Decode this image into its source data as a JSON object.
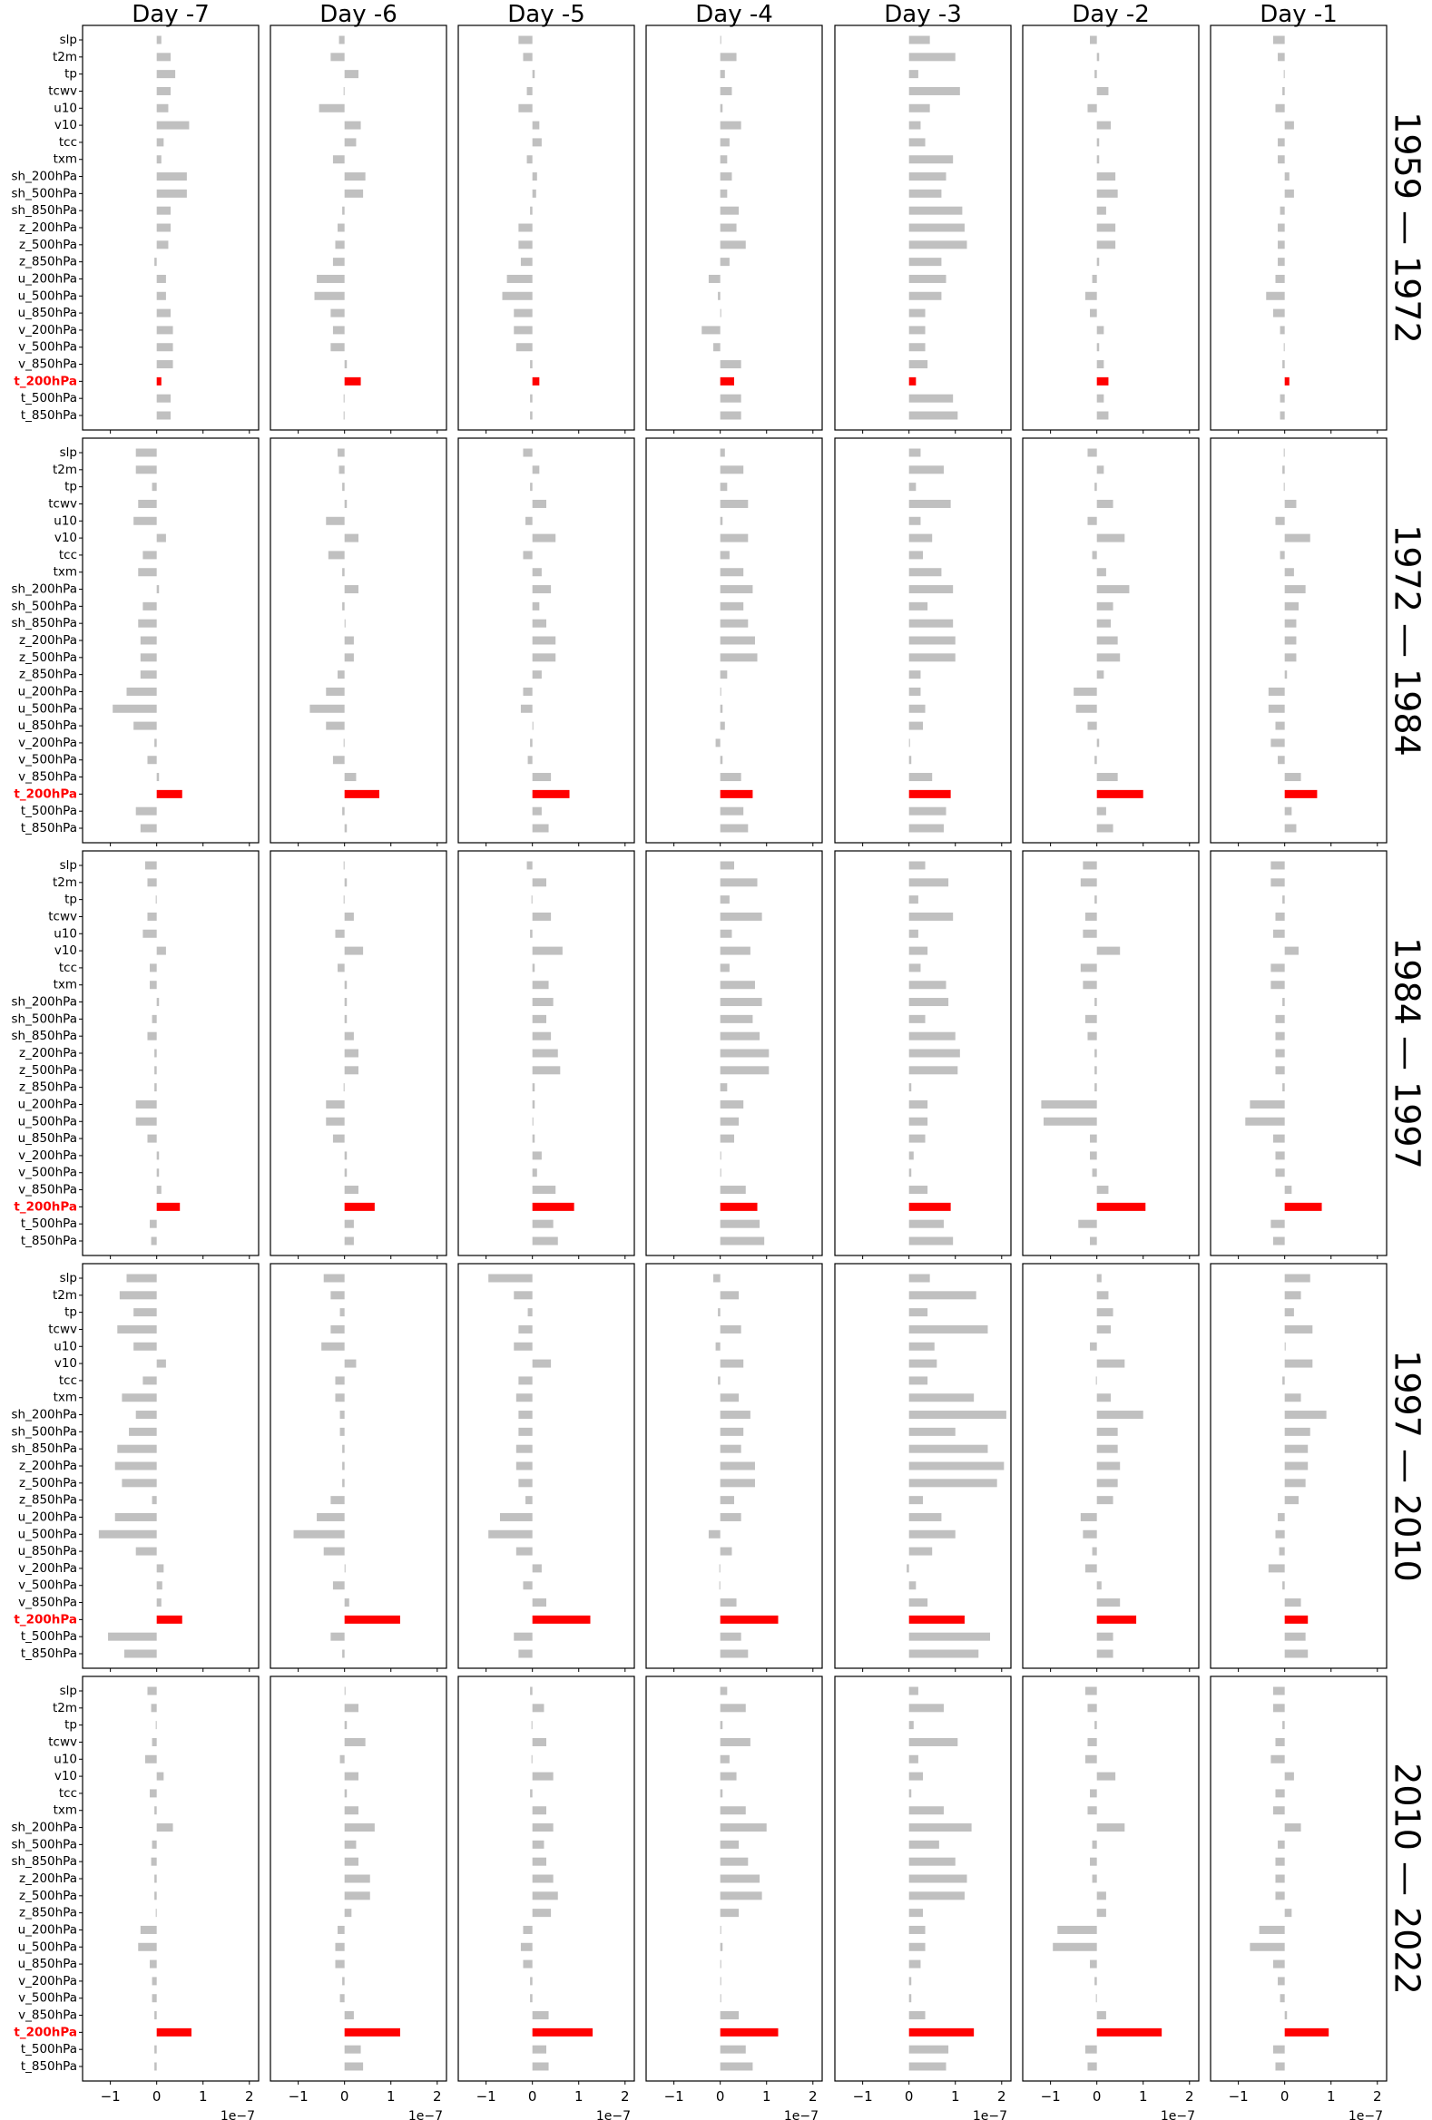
{
  "chart_data": {
    "type": "bar",
    "orientation": "horizontal",
    "columns": [
      "Day -7",
      "Day -6",
      "Day -5",
      "Day -4",
      "Day -3",
      "Day -2",
      "Day -1"
    ],
    "rows": [
      "1959 — 1972",
      "1972 — 1984",
      "1984 — 1997",
      "1997 — 2010",
      "2010 — 2022"
    ],
    "variables": [
      "slp",
      "t2m",
      "tp",
      "tcwv",
      "u10",
      "v10",
      "tcc",
      "txm",
      "sh_200hPa",
      "sh_500hPa",
      "sh_850hPa",
      "z_200hPa",
      "z_500hPa",
      "z_850hPa",
      "u_200hPa",
      "u_500hPa",
      "u_850hPa",
      "v_200hPa",
      "v_500hPa",
      "v_850hPa",
      "t_200hPa",
      "t_500hPa",
      "t_850hPa"
    ],
    "highlight_variable": "t_200hPa",
    "colors": {
      "bars": "#c0c0c0",
      "highlight": "#ff0000"
    },
    "xlim": [
      -1.6,
      2.2
    ],
    "xticks": [
      -1,
      0,
      1,
      2
    ],
    "xtick_labels": [
      "−1",
      "0",
      "1",
      "2"
    ],
    "x_scale_label": "1e−7",
    "grid": false,
    "values": [
      [
        [
          0.1,
          0.3,
          0.4,
          0.3,
          0.25,
          0.7,
          0.15,
          0.1,
          0.65,
          0.65,
          0.3,
          0.3,
          0.25,
          -0.05,
          0.2,
          0.2,
          0.3,
          0.35,
          0.35,
          0.35,
          0.1,
          0.3,
          0.3
        ],
        [
          -0.12,
          -0.3,
          0.3,
          -0.02,
          -0.55,
          0.35,
          0.25,
          -0.25,
          0.45,
          0.4,
          -0.05,
          -0.15,
          -0.2,
          -0.25,
          -0.6,
          -0.65,
          -0.3,
          -0.25,
          -0.3,
          0.05,
          0.35,
          -0.02,
          -0.02
        ],
        [
          -0.3,
          -0.2,
          0.05,
          -0.12,
          -0.3,
          0.15,
          0.2,
          -0.12,
          0.1,
          0.08,
          -0.05,
          -0.3,
          -0.3,
          -0.25,
          -0.55,
          -0.65,
          -0.4,
          -0.4,
          -0.35,
          -0.05,
          0.15,
          -0.05,
          -0.05
        ],
        [
          0.02,
          0.35,
          0.1,
          0.25,
          0.05,
          0.45,
          0.2,
          0.15,
          0.25,
          0.15,
          0.4,
          0.35,
          0.55,
          0.2,
          -0.25,
          -0.05,
          0.02,
          -0.4,
          -0.15,
          0.45,
          0.3,
          0.45,
          0.45
        ],
        [
          0.45,
          1.0,
          0.2,
          1.1,
          0.45,
          0.25,
          0.35,
          0.95,
          0.8,
          0.7,
          1.15,
          1.2,
          1.25,
          0.7,
          0.8,
          0.7,
          0.35,
          0.35,
          0.35,
          0.4,
          0.15,
          0.95,
          1.05
        ],
        [
          -0.15,
          0.05,
          -0.05,
          0.25,
          -0.2,
          0.3,
          0.05,
          0.05,
          0.4,
          0.45,
          0.2,
          0.4,
          0.4,
          0.05,
          -0.1,
          -0.25,
          -0.15,
          0.15,
          0.05,
          0.15,
          0.25,
          0.15,
          0.25
        ],
        [
          -0.25,
          -0.15,
          -0.02,
          -0.05,
          -0.2,
          0.2,
          -0.15,
          -0.15,
          0.1,
          0.2,
          -0.1,
          -0.15,
          -0.15,
          -0.15,
          -0.2,
          -0.4,
          -0.25,
          -0.1,
          -0.02,
          -0.05,
          0.1,
          -0.1,
          -0.1
        ]
      ],
      [
        [
          -0.45,
          -0.45,
          -0.1,
          -0.4,
          -0.5,
          0.2,
          -0.3,
          -0.4,
          0.05,
          -0.3,
          -0.4,
          -0.35,
          -0.35,
          -0.35,
          -0.65,
          -0.95,
          -0.5,
          -0.05,
          -0.2,
          0.05,
          0.55,
          -0.45,
          -0.35
        ],
        [
          -0.15,
          -0.12,
          -0.05,
          0.05,
          -0.4,
          0.3,
          -0.35,
          -0.05,
          0.3,
          -0.05,
          0.02,
          0.2,
          0.2,
          -0.15,
          -0.4,
          -0.75,
          -0.4,
          -0.02,
          -0.25,
          0.25,
          0.75,
          -0.05,
          0.05
        ],
        [
          -0.2,
          0.15,
          -0.05,
          0.3,
          -0.15,
          0.5,
          -0.2,
          0.2,
          0.4,
          0.15,
          0.3,
          0.5,
          0.5,
          0.2,
          -0.2,
          -0.25,
          0.02,
          -0.05,
          -0.1,
          0.4,
          0.8,
          0.2,
          0.35
        ],
        [
          0.1,
          0.5,
          0.15,
          0.6,
          0.05,
          0.6,
          0.2,
          0.5,
          0.7,
          0.5,
          0.6,
          0.75,
          0.8,
          0.15,
          0.02,
          0.05,
          0.1,
          -0.1,
          0.05,
          0.45,
          0.7,
          0.5,
          0.6
        ],
        [
          0.25,
          0.75,
          0.15,
          0.9,
          0.25,
          0.5,
          0.3,
          0.7,
          0.95,
          0.4,
          0.95,
          1.0,
          1.0,
          0.25,
          0.25,
          0.35,
          0.3,
          0.02,
          0.05,
          0.5,
          0.9,
          0.8,
          0.75
        ],
        [
          -0.2,
          0.15,
          -0.05,
          0.35,
          -0.2,
          0.6,
          -0.1,
          0.2,
          0.7,
          0.35,
          0.3,
          0.45,
          0.5,
          0.15,
          -0.5,
          -0.45,
          -0.2,
          0.05,
          -0.05,
          0.45,
          1.0,
          0.2,
          0.35
        ],
        [
          -0.02,
          -0.05,
          -0.02,
          0.25,
          -0.2,
          0.55,
          -0.1,
          0.2,
          0.45,
          0.3,
          0.25,
          0.25,
          0.25,
          0.05,
          -0.35,
          -0.35,
          -0.2,
          -0.3,
          -0.15,
          0.35,
          0.7,
          0.15,
          0.25
        ]
      ],
      [
        [
          -0.25,
          -0.2,
          -0.02,
          -0.2,
          -0.3,
          0.2,
          -0.15,
          -0.15,
          0.05,
          -0.1,
          -0.2,
          -0.05,
          -0.05,
          -0.05,
          -0.45,
          -0.45,
          -0.2,
          0.05,
          0.05,
          0.1,
          0.5,
          -0.15,
          -0.12
        ],
        [
          -0.02,
          0.05,
          -0.02,
          0.2,
          -0.2,
          0.4,
          -0.15,
          0.05,
          0.05,
          0.05,
          0.2,
          0.3,
          0.3,
          -0.02,
          -0.4,
          -0.4,
          -0.25,
          0.05,
          0.05,
          0.3,
          0.65,
          0.2,
          0.2
        ],
        [
          -0.12,
          0.3,
          -0.02,
          0.4,
          -0.05,
          0.65,
          0.05,
          0.35,
          0.45,
          0.3,
          0.4,
          0.55,
          0.6,
          0.05,
          0.05,
          0.02,
          0.05,
          0.2,
          0.1,
          0.5,
          0.9,
          0.45,
          0.55
        ],
        [
          0.3,
          0.8,
          0.2,
          0.9,
          0.25,
          0.65,
          0.2,
          0.75,
          0.9,
          0.7,
          0.85,
          1.05,
          1.05,
          0.15,
          0.5,
          0.4,
          0.3,
          0.02,
          0.02,
          0.55,
          0.8,
          0.85,
          0.95
        ],
        [
          0.35,
          0.85,
          0.2,
          0.95,
          0.2,
          0.4,
          0.25,
          0.8,
          0.85,
          0.35,
          1.0,
          1.1,
          1.05,
          0.05,
          0.4,
          0.4,
          0.35,
          0.1,
          0.05,
          0.4,
          0.9,
          0.75,
          0.95
        ],
        [
          -0.3,
          -0.35,
          -0.05,
          -0.25,
          -0.3,
          0.5,
          -0.35,
          -0.3,
          -0.05,
          -0.25,
          -0.2,
          -0.05,
          -0.05,
          -0.05,
          -1.2,
          -1.15,
          -0.15,
          -0.15,
          -0.1,
          0.25,
          1.05,
          -0.4,
          -0.15
        ],
        [
          -0.3,
          -0.3,
          -0.05,
          -0.2,
          -0.25,
          0.3,
          -0.3,
          -0.3,
          -0.05,
          -0.2,
          -0.2,
          -0.2,
          -0.2,
          -0.05,
          -0.75,
          -0.85,
          -0.25,
          -0.2,
          -0.2,
          0.15,
          0.8,
          -0.3,
          -0.25
        ]
      ],
      [
        [
          -0.65,
          -0.8,
          -0.5,
          -0.85,
          -0.5,
          0.2,
          -0.3,
          -0.75,
          -0.45,
          -0.6,
          -0.85,
          -0.9,
          -0.75,
          -0.1,
          -0.9,
          -1.25,
          -0.45,
          0.15,
          0.12,
          0.1,
          0.55,
          -1.05,
          -0.7
        ],
        [
          -0.45,
          -0.3,
          -0.1,
          -0.3,
          -0.5,
          0.25,
          -0.2,
          -0.2,
          -0.1,
          -0.1,
          -0.05,
          -0.05,
          -0.05,
          -0.3,
          -0.6,
          -1.1,
          -0.45,
          0.02,
          -0.25,
          0.1,
          1.2,
          -0.3,
          -0.05
        ],
        [
          -0.95,
          -0.4,
          -0.1,
          -0.3,
          -0.4,
          0.4,
          -0.3,
          -0.35,
          -0.3,
          -0.3,
          -0.35,
          -0.35,
          -0.3,
          -0.15,
          -0.7,
          -0.95,
          -0.35,
          0.2,
          -0.2,
          0.3,
          1.25,
          -0.4,
          -0.3
        ],
        [
          -0.15,
          0.4,
          -0.05,
          0.45,
          -0.1,
          0.5,
          -0.05,
          0.4,
          0.65,
          0.5,
          0.45,
          0.75,
          0.75,
          0.3,
          0.45,
          -0.25,
          0.25,
          -0.02,
          -0.02,
          0.35,
          1.25,
          0.45,
          0.6
        ],
        [
          0.45,
          1.45,
          0.4,
          1.7,
          0.55,
          0.6,
          0.4,
          1.4,
          2.1,
          1.0,
          1.7,
          2.05,
          1.9,
          0.3,
          0.7,
          1.0,
          0.5,
          -0.05,
          0.15,
          0.4,
          1.2,
          1.75,
          1.5
        ],
        [
          0.1,
          0.25,
          0.35,
          0.3,
          -0.15,
          0.6,
          -0.02,
          0.3,
          1.0,
          0.45,
          0.45,
          0.5,
          0.45,
          0.35,
          -0.35,
          -0.3,
          -0.1,
          -0.25,
          0.1,
          0.5,
          0.85,
          0.35,
          0.35
        ],
        [
          0.55,
          0.35,
          0.2,
          0.6,
          0.02,
          0.6,
          -0.05,
          0.35,
          0.9,
          0.55,
          0.5,
          0.5,
          0.45,
          0.3,
          -0.15,
          -0.2,
          -0.12,
          -0.35,
          -0.05,
          0.35,
          0.5,
          0.45,
          0.5
        ]
      ],
      [
        [
          -0.2,
          -0.12,
          -0.02,
          -0.1,
          -0.25,
          0.15,
          -0.15,
          -0.05,
          0.35,
          -0.1,
          -0.12,
          -0.05,
          -0.05,
          -0.02,
          -0.35,
          -0.4,
          -0.15,
          -0.1,
          -0.1,
          -0.05,
          0.75,
          -0.05,
          -0.05
        ],
        [
          0.02,
          0.3,
          0.05,
          0.45,
          -0.1,
          0.3,
          0.05,
          0.3,
          0.65,
          0.25,
          0.3,
          0.55,
          0.55,
          0.15,
          -0.15,
          -0.2,
          -0.2,
          -0.05,
          -0.1,
          0.2,
          1.2,
          0.35,
          0.4
        ],
        [
          -0.05,
          0.25,
          -0.02,
          0.3,
          -0.02,
          0.45,
          -0.05,
          0.3,
          0.45,
          0.25,
          0.3,
          0.45,
          0.55,
          0.4,
          -0.2,
          -0.25,
          -0.2,
          -0.05,
          -0.05,
          0.35,
          1.3,
          0.3,
          0.35
        ],
        [
          0.15,
          0.55,
          0.05,
          0.65,
          0.2,
          0.35,
          0.05,
          0.55,
          1.0,
          0.4,
          0.6,
          0.85,
          0.9,
          0.4,
          0.02,
          0.05,
          0.02,
          0.02,
          0.02,
          0.4,
          1.25,
          0.55,
          0.7
        ],
        [
          0.2,
          0.75,
          0.1,
          1.05,
          0.2,
          0.3,
          0.05,
          0.75,
          1.35,
          0.65,
          1.0,
          1.25,
          1.2,
          0.3,
          0.35,
          0.35,
          0.25,
          0.05,
          0.05,
          0.35,
          1.4,
          0.85,
          0.8
        ],
        [
          -0.25,
          -0.2,
          -0.05,
          -0.2,
          -0.25,
          0.4,
          -0.15,
          -0.2,
          0.6,
          -0.1,
          -0.15,
          -0.1,
          0.2,
          0.2,
          -0.85,
          -0.95,
          -0.15,
          -0.05,
          -0.02,
          0.2,
          1.4,
          -0.25,
          -0.2
        ],
        [
          -0.25,
          -0.25,
          -0.05,
          -0.2,
          -0.3,
          0.2,
          -0.2,
          -0.25,
          0.35,
          -0.15,
          -0.2,
          -0.2,
          -0.2,
          0.15,
          -0.55,
          -0.75,
          -0.25,
          -0.15,
          -0.1,
          0.05,
          0.95,
          -0.25,
          -0.2
        ]
      ]
    ]
  }
}
